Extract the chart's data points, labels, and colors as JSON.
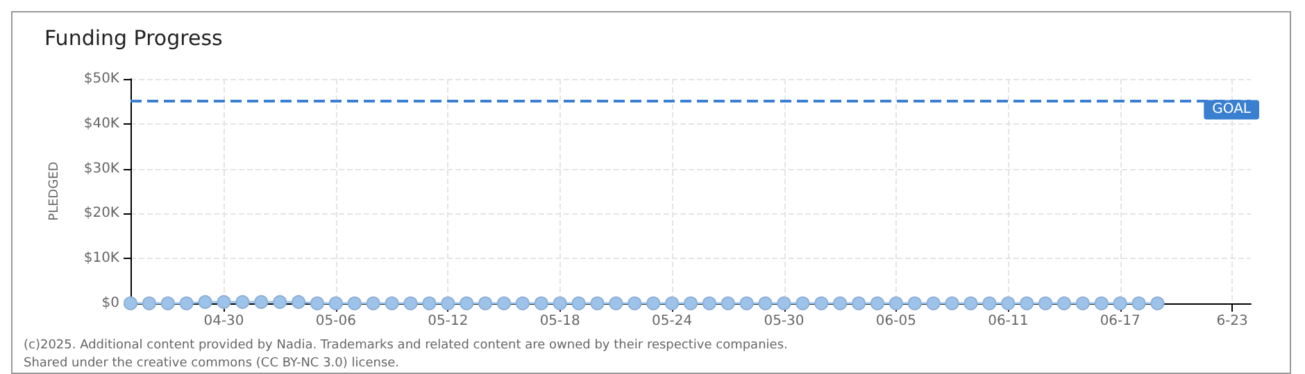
{
  "chart_data": {
    "type": "line",
    "title": "Funding Progress",
    "ylabel": "PLEDGED",
    "x": [
      "2025-04-25",
      "2025-04-26",
      "2025-04-27",
      "2025-04-28",
      "2025-04-29",
      "2025-04-30",
      "2025-05-01",
      "2025-05-02",
      "2025-05-03",
      "2025-05-04",
      "2025-05-05",
      "2025-05-06",
      "2025-05-07",
      "2025-05-08",
      "2025-05-09",
      "2025-05-10",
      "2025-05-11",
      "2025-05-12",
      "2025-05-13",
      "2025-05-14",
      "2025-05-15",
      "2025-05-16",
      "2025-05-17",
      "2025-05-18",
      "2025-05-19",
      "2025-05-20",
      "2025-05-21",
      "2025-05-22",
      "2025-05-23",
      "2025-05-24",
      "2025-05-25",
      "2025-05-26",
      "2025-05-27",
      "2025-05-28",
      "2025-05-29",
      "2025-05-30",
      "2025-05-31",
      "2025-06-01",
      "2025-06-02",
      "2025-06-03",
      "2025-06-04",
      "2025-06-05",
      "2025-06-06",
      "2025-06-07",
      "2025-06-08",
      "2025-06-09",
      "2025-06-10",
      "2025-06-11",
      "2025-06-12",
      "2025-06-13",
      "2025-06-14",
      "2025-06-15",
      "2025-06-16",
      "2025-06-17",
      "2025-06-18",
      "2025-06-19"
    ],
    "series": [
      {
        "color": "#9dc3ea",
        "values": [
          0,
          0,
          0,
          0,
          300,
          300,
          300,
          300,
          300,
          300,
          0,
          0,
          0,
          0,
          0,
          0,
          0,
          0,
          0,
          0,
          0,
          0,
          0,
          0,
          0,
          0,
          0,
          0,
          0,
          0,
          0,
          0,
          0,
          0,
          0,
          0,
          0,
          0,
          0,
          0,
          0,
          0,
          0,
          0,
          0,
          0,
          0,
          0,
          0,
          0,
          0,
          0,
          0,
          0,
          0,
          0
        ]
      }
    ],
    "marker": "circle",
    "xlim": [
      "2025-04-25",
      "2025-06-24"
    ],
    "xticks": [
      {
        "value": "2025-04-30",
        "label": "04-30"
      },
      {
        "value": "2025-05-06",
        "label": "05-06"
      },
      {
        "value": "2025-05-12",
        "label": "05-12"
      },
      {
        "value": "2025-05-18",
        "label": "05-18"
      },
      {
        "value": "2025-05-24",
        "label": "05-24"
      },
      {
        "value": "2025-05-30",
        "label": "05-30"
      },
      {
        "value": "2025-06-05",
        "label": "06-05"
      },
      {
        "value": "2025-06-11",
        "label": "06-11"
      },
      {
        "value": "2025-06-17",
        "label": "06-17"
      },
      {
        "value": "2025-06-23",
        "label": "6-23"
      }
    ],
    "ylim": [
      0,
      50000
    ],
    "yticks": [
      {
        "value": 0,
        "label": "$0"
      },
      {
        "value": 10000,
        "label": "$10K"
      },
      {
        "value": 20000,
        "label": "$20K"
      },
      {
        "value": 30000,
        "label": "$30K"
      },
      {
        "value": 40000,
        "label": "$40K"
      },
      {
        "value": 50000,
        "label": "$50K"
      }
    ],
    "grid": true,
    "ref_lines": [
      {
        "axis": "y",
        "value": 45000,
        "label": "GOAL",
        "color": "#3a7fd0",
        "line_style": "dashed"
      }
    ],
    "annotations": [
      "(c)2025. Additional content provided by Nadia. Trademarks and related content are owned by their respective companies.",
      "Shared under the creative commons (CC BY-NC 3.0) license."
    ]
  }
}
